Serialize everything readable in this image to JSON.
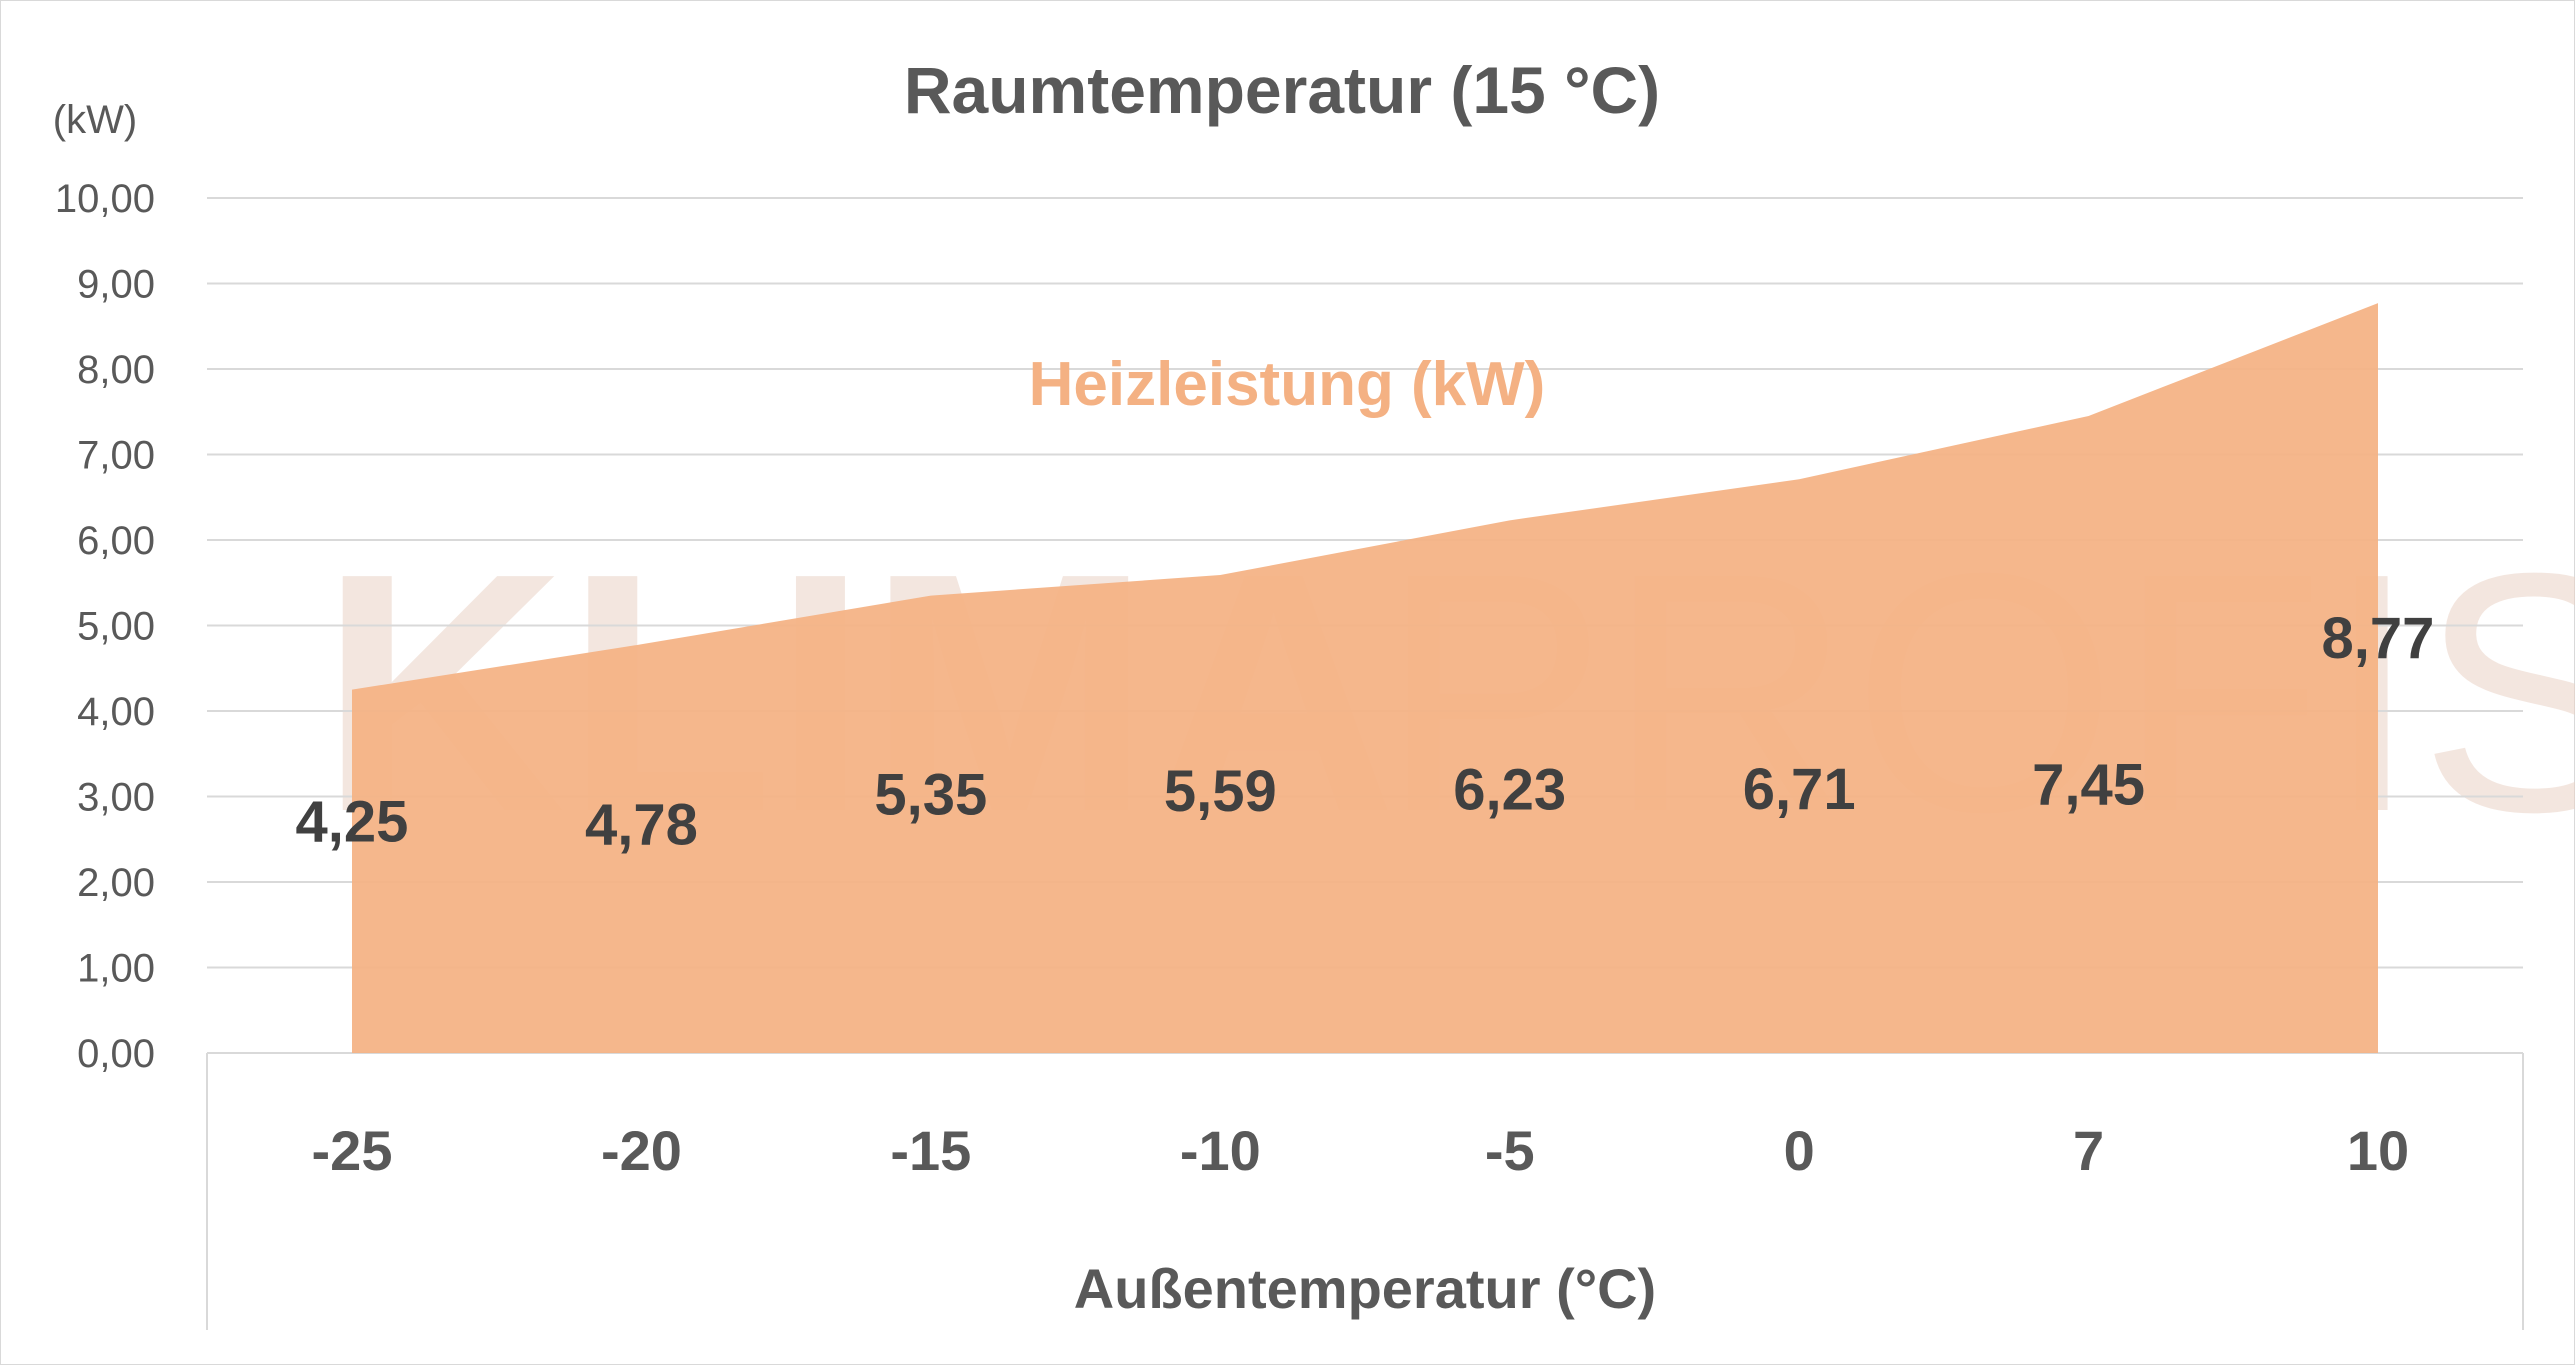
{
  "chart_data": {
    "type": "area",
    "title": "Raumtemperatur (15 °C)",
    "ylabel": "(kW)",
    "xlabel": "Außentemperatur (°C)",
    "categories": [
      "-25",
      "-20",
      "-15",
      "-10",
      "-5",
      "0",
      "7",
      "10"
    ],
    "series": [
      {
        "name": "Heizleistung (kW)",
        "values": [
          4.25,
          4.78,
          5.35,
          5.59,
          6.23,
          6.71,
          7.45,
          8.77
        ],
        "color": "#F4B183",
        "value_labels": [
          "4,25",
          "4,78",
          "5,35",
          "5,59",
          "6,23",
          "6,71",
          "7,45",
          "8,77"
        ]
      }
    ],
    "ylim": [
      0,
      10
    ],
    "yticks": [
      "0,00",
      "1,00",
      "2,00",
      "3,00",
      "4,00",
      "5,00",
      "6,00",
      "7,00",
      "8,00",
      "9,00",
      "10,00"
    ],
    "grid": true,
    "legend": "inline"
  },
  "watermark": {
    "part1": "KLIMA",
    "part2": "PROFIS",
    "color": "#e9d2c5"
  },
  "colors": {
    "text": "#595959",
    "gridline": "#d9d9d9",
    "data_label": "#404040"
  }
}
